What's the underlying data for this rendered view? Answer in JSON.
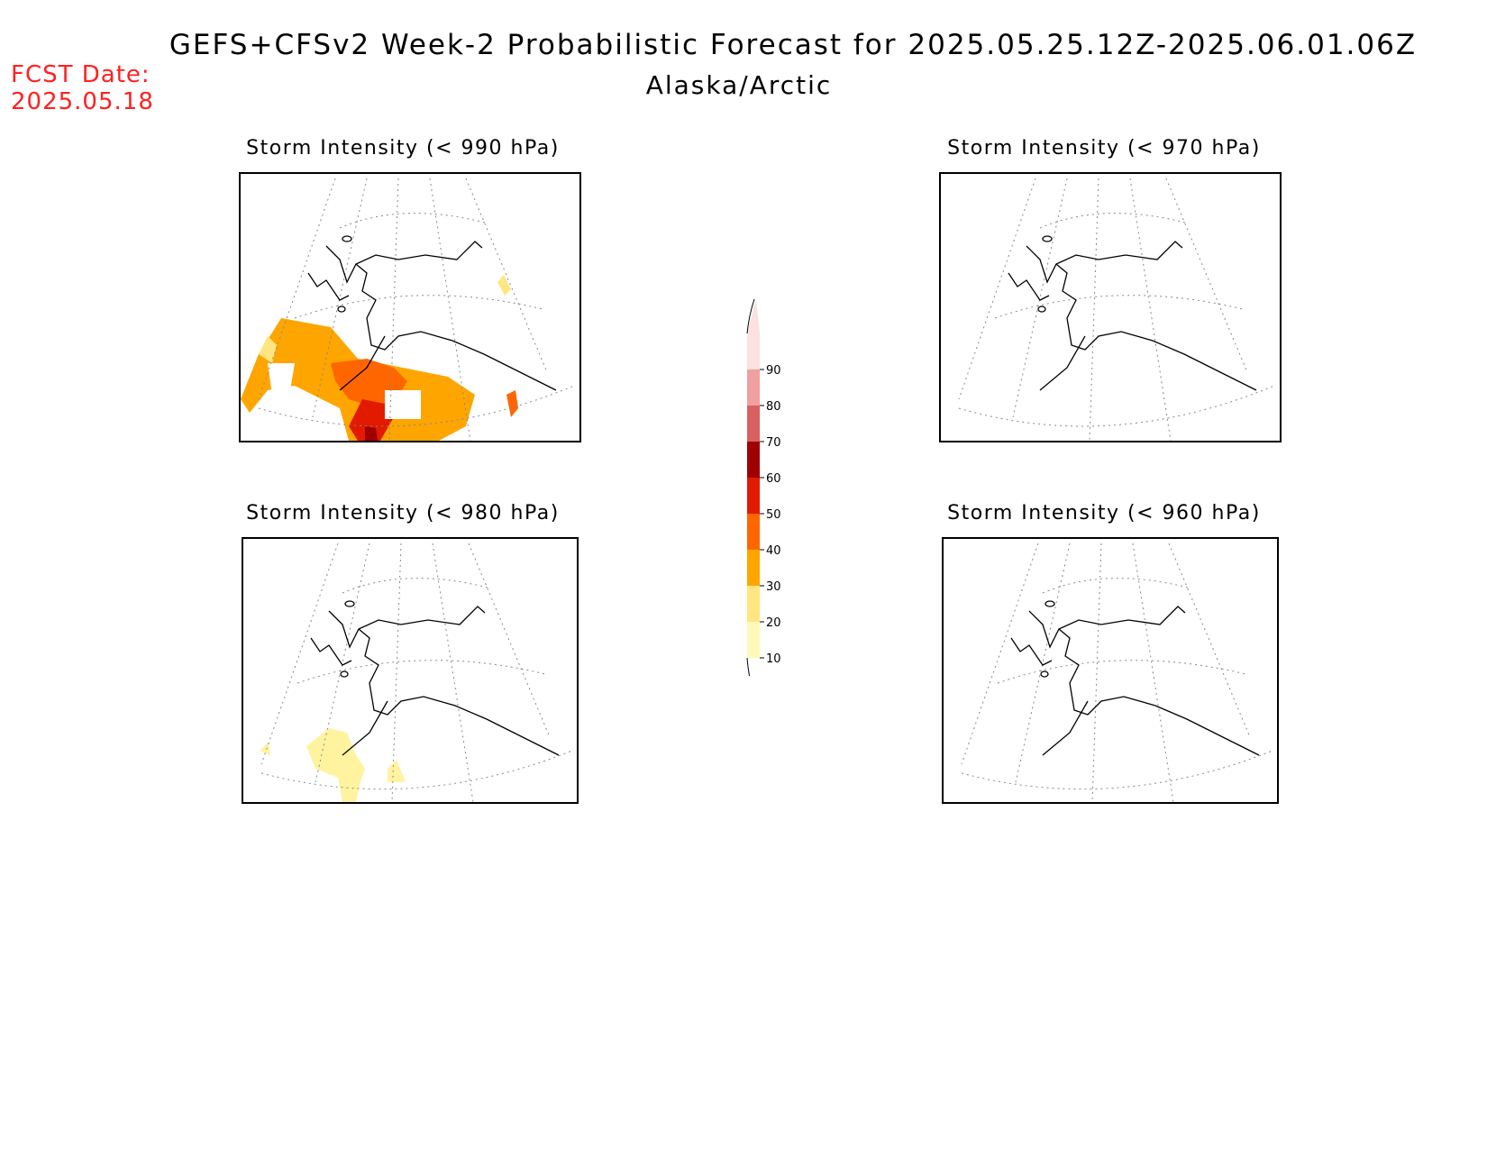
{
  "header": {
    "title": "GEFS+CFSv2 Week-2 Probabilistic Forecast for 2025.05.25.12Z-2025.06.01.06Z",
    "subtitle": "Alaska/Arctic",
    "fcst_label": "FCST Date:",
    "fcst_date": "2025.05.18"
  },
  "panels": [
    {
      "title": "Storm Intensity (< 990 hPa)"
    },
    {
      "title": "Storm Intensity (< 970 hPa)"
    },
    {
      "title": "Storm Intensity (< 980 hPa)"
    },
    {
      "title": "Storm Intensity (< 960 hPa)"
    }
  ],
  "colorbar": {
    "levels": [
      "10",
      "20",
      "30",
      "40",
      "50",
      "60",
      "70",
      "80",
      "90"
    ],
    "colors": [
      "#fff9b8",
      "#ffe680",
      "#ffa500",
      "#ff6600",
      "#e11a00",
      "#a00000",
      "#d96060",
      "#f0a0a0",
      "#fde0e0"
    ]
  }
}
